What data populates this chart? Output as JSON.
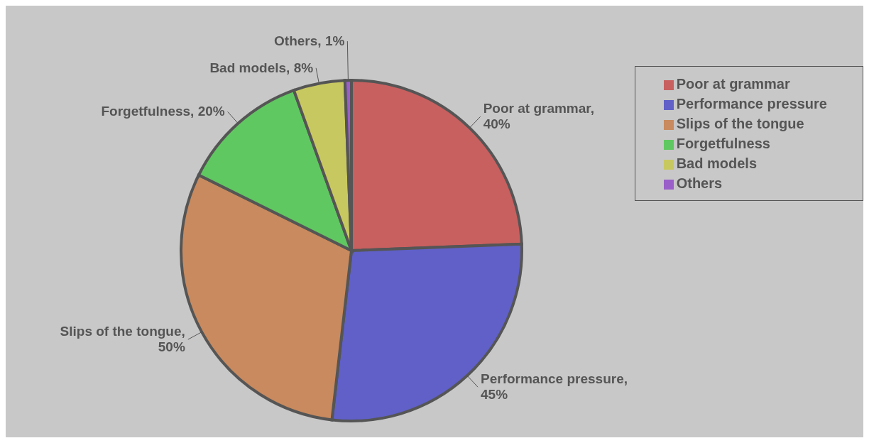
{
  "chart_data": {
    "type": "pie",
    "categories": [
      "Poor at grammar",
      "Performance pressure",
      "Slips of the tongue",
      "Forgetfulness",
      "Bad models",
      "Others"
    ],
    "values": [
      40,
      45,
      50,
      20,
      8,
      1
    ],
    "value_labels": [
      "Poor at grammar, 40%",
      "Performance pressure, 45%",
      "Slips of the tongue, 50%",
      "Forgetfulness, 20%",
      "Bad models, 8%",
      "Others, 1%"
    ],
    "colors": [
      "#c86060",
      "#6060c8",
      "#c88a5e",
      "#60c860",
      "#c8c860",
      "#9a5fc8"
    ],
    "legend": "top right"
  }
}
